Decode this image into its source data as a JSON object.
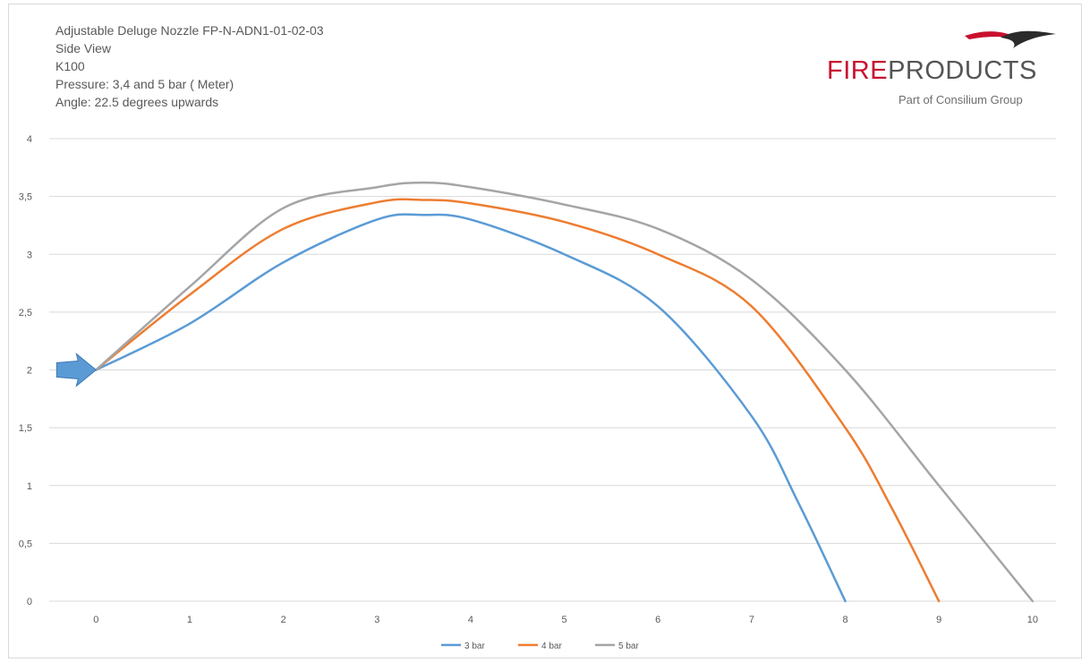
{
  "header": {
    "lines": [
      "Adjustable Deluge Nozzle FP-N-ADN1-01-02-03",
      "Side View",
      "K100",
      "Pressure: 3,4 and 5 bar ( Meter)",
      "Angle: 22.5 degrees upwards"
    ]
  },
  "logo": {
    "brand_fire": "FIRE",
    "brand_products": "PRODUCTS",
    "tagline": "Part of Consilium Group",
    "colors": {
      "fire": "#c8102e",
      "products": "#555555"
    }
  },
  "chart_data": {
    "type": "line",
    "title": "Adjustable Deluge Nozzle FP-N-ADN1-01-02-03",
    "xlabel": "",
    "ylabel": "",
    "xlim": [
      -0.5,
      10.25
    ],
    "ylim": [
      0,
      4
    ],
    "x_ticks": [
      "0",
      "1",
      "2",
      "3",
      "4",
      "5",
      "6",
      "7",
      "8",
      "9",
      "10"
    ],
    "y_ticks": [
      "0",
      "0,5",
      "1",
      "1,5",
      "2",
      "2,5",
      "3",
      "3,5",
      "4"
    ],
    "grid": true,
    "legend": "bottom-center",
    "marker_icon": "blue-arrow-icon",
    "marker_at": [
      0,
      2
    ],
    "series": [
      {
        "name": "3 bar",
        "color": "#5b9bd5",
        "points": [
          [
            0,
            2
          ],
          [
            1,
            2.4
          ],
          [
            2,
            2.93
          ],
          [
            3,
            3.3
          ],
          [
            3.5,
            3.34
          ],
          [
            4,
            3.3
          ],
          [
            5,
            3.0
          ],
          [
            6,
            2.55
          ],
          [
            7,
            1.6
          ],
          [
            7.5,
            0.85
          ],
          [
            8,
            0
          ]
        ]
      },
      {
        "name": "4 bar",
        "color": "#ed7d31",
        "points": [
          [
            0,
            2
          ],
          [
            1,
            2.65
          ],
          [
            2,
            3.22
          ],
          [
            3,
            3.45
          ],
          [
            3.5,
            3.47
          ],
          [
            4,
            3.44
          ],
          [
            5,
            3.28
          ],
          [
            6,
            3.0
          ],
          [
            7,
            2.55
          ],
          [
            8,
            1.5
          ],
          [
            8.5,
            0.8
          ],
          [
            9,
            0
          ]
        ]
      },
      {
        "name": "5 bar",
        "color": "#a5a5a5",
        "points": [
          [
            0,
            2
          ],
          [
            1,
            2.72
          ],
          [
            2,
            3.4
          ],
          [
            3,
            3.58
          ],
          [
            3.5,
            3.62
          ],
          [
            4,
            3.58
          ],
          [
            5,
            3.43
          ],
          [
            6,
            3.22
          ],
          [
            7,
            2.78
          ],
          [
            8,
            2.0
          ],
          [
            9,
            1.0
          ],
          [
            10,
            0
          ]
        ]
      }
    ]
  }
}
